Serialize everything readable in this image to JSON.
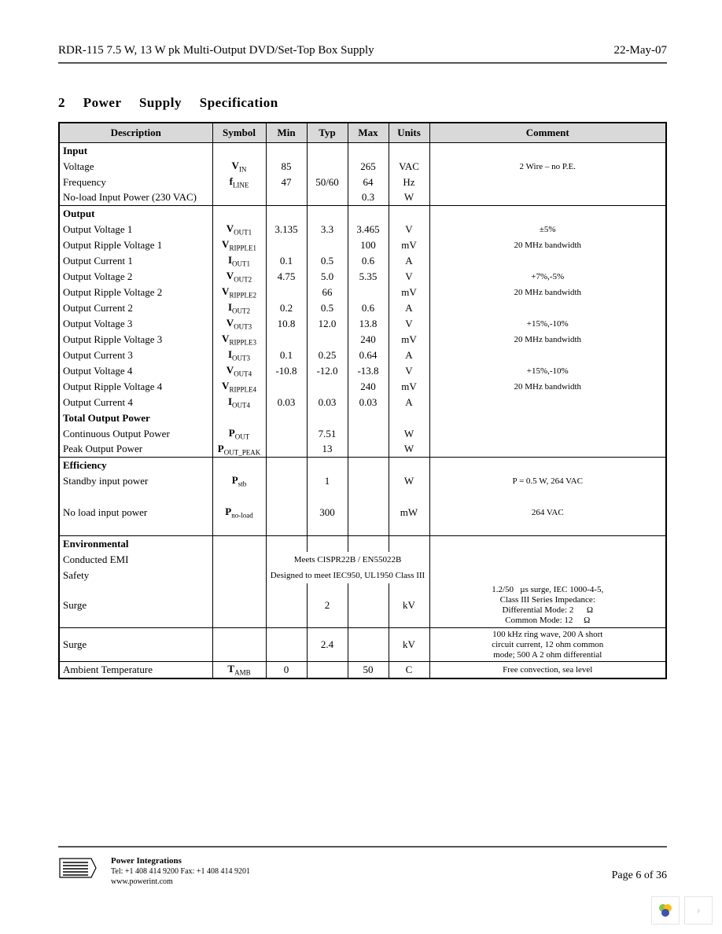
{
  "header": {
    "left": "RDR-115 7.5 W, 13 W pk Multi-Output DVD/Set-Top Box Supply",
    "right": "22-May-07"
  },
  "section_title": "2 Power Supply Specification",
  "table": {
    "headers": [
      "Description",
      "Symbol",
      "Min",
      "Typ",
      "Max",
      "Units",
      "Comment"
    ],
    "rows": [
      {
        "section": true,
        "desc_bold": "Input"
      },
      {
        "desc": "Voltage",
        "sym": "V",
        "sub": "IN",
        "min": "85",
        "typ": "",
        "max": "265",
        "unit": "VAC",
        "cmt": "2 Wire – no P.E."
      },
      {
        "desc": "Frequency",
        "sym": "f",
        "sub": "LINE",
        "min": "47",
        "typ": "50/60",
        "max": "64",
        "unit": "Hz",
        "cmt": ""
      },
      {
        "desc": "No-load Input Power (230 VAC)",
        "sym": "",
        "sub": "",
        "min": "",
        "typ": "",
        "max": "0.3",
        "unit": "W",
        "cmt": ""
      },
      {
        "section": true,
        "desc_bold": "Output"
      },
      {
        "desc": "Output Voltage 1",
        "sym": "V",
        "sub": "OUT1",
        "min": "3.135",
        "typ": "3.3",
        "max": "3.465",
        "unit": "V",
        "cmt": "±5%"
      },
      {
        "desc": "Output Ripple Voltage 1",
        "sym": "V",
        "sub": "RIPPLE1",
        "min": "",
        "typ": "",
        "max": "100",
        "unit": "mV",
        "cmt": "20 MHz bandwidth"
      },
      {
        "desc": "Output Current 1",
        "sym": "I",
        "sub": "OUT1",
        "min": "0.1",
        "typ": "0.5",
        "max": "0.6",
        "unit": "A",
        "cmt": ""
      },
      {
        "desc": "Output Voltage 2",
        "sym": "V",
        "sub": "OUT2",
        "min": "4.75",
        "typ": "5.0",
        "max": "5.35",
        "unit": "V",
        "cmt": "+7%,-5%"
      },
      {
        "desc": "Output Ripple Voltage 2",
        "sym": "V",
        "sub": "RIPPLE2",
        "min": "",
        "typ": "66",
        "max": "",
        "unit": "mV",
        "cmt": "20 MHz bandwidth"
      },
      {
        "desc": "Output Current 2",
        "sym": "I",
        "sub": "OUT2",
        "min": "0.2",
        "typ": "0.5",
        "max": "0.6",
        "unit": "A",
        "cmt": ""
      },
      {
        "desc": "Output Voltage 3",
        "sym": "V",
        "sub": "OUT3",
        "min": "10.8",
        "typ": "12.0",
        "max": "13.8",
        "unit": "V",
        "cmt": "+15%,-10%"
      },
      {
        "desc": "Output Ripple Voltage 3",
        "sym": "V",
        "sub": "RIPPLE3",
        "min": "",
        "typ": "",
        "max": "240",
        "unit": "mV",
        "cmt": "20 MHz bandwidth"
      },
      {
        "desc": "Output Current 3",
        "sym": "I",
        "sub": "OUT3",
        "min": "0.1",
        "typ": "0.25",
        "max": "0.64",
        "unit": "A",
        "cmt": ""
      },
      {
        "desc": "Output Voltage 4",
        "sym": "V",
        "sub": "OUT4",
        "min": "-10.8",
        "typ": "-12.0",
        "max": "-13.8",
        "unit": "V",
        "cmt": "+15%,-10%"
      },
      {
        "desc": "Output Ripple Voltage 4",
        "sym": "V",
        "sub": "RIPPLE4",
        "min": "",
        "typ": "",
        "max": "240",
        "unit": "mV",
        "cmt": "20 MHz bandwidth"
      },
      {
        "desc": "Output Current 4",
        "sym": "I",
        "sub": "OUT4",
        "min": "0.03",
        "typ": "0.03",
        "max": "0.03",
        "unit": "A",
        "cmt": ""
      },
      {
        "desc_bold": "Total Output Power"
      },
      {
        "desc": "Continuous Output Power",
        "sym": "P",
        "sub": "OUT",
        "min": "",
        "typ": "7.51",
        "max": "",
        "unit": "W",
        "cmt": ""
      },
      {
        "desc": "Peak Output Power",
        "sym": "P",
        "sub": "OUT_PEAK",
        "min": "",
        "typ": "13",
        "max": "",
        "unit": "W",
        "cmt": ""
      },
      {
        "section": true,
        "desc_bold": "Efficiency"
      },
      {
        "desc": "Standby input power",
        "sym": "P",
        "sub": "stb",
        "min": "",
        "typ": "1",
        "max": "",
        "unit": "W",
        "cmt": "P     = 0.5 W, 264 VAC"
      },
      {
        "spacer": true
      },
      {
        "desc": "No load input power",
        "sym": "P",
        "sub": "no-load",
        "min": "",
        "typ": "300",
        "max": "",
        "unit": "mW",
        "cmt": "264   VAC"
      },
      {
        "spacer": true
      },
      {
        "section": true,
        "desc_bold": "Environmental"
      },
      {
        "env": true,
        "desc": "Conducted EMI",
        "merged": "Meets CISPR22B / EN55022B"
      },
      {
        "env": true,
        "desc": "Safety",
        "merged": "Designed to meet IEC950, UL1950 Class III"
      },
      {
        "env2": true,
        "desc": "Surge",
        "min": "",
        "typ": "2",
        "max": "",
        "unit": "kV",
        "cmt": "1.2/50    µs surge, IEC 1000-4-5, Class III Series Impedance: Differential Mode: 2        Ω Common Mode: 12       Ω"
      },
      {
        "section": true,
        "desc": "Surge",
        "sym": "",
        "min": "",
        "typ": "2.4",
        "max": "",
        "unit": "kV",
        "cmt": "100 kHz ring wave, 200 A short circuit current, 12 ohm common mode; 500 A 2 ohm differential"
      },
      {
        "section": true,
        "last": true,
        "desc": "Ambient Temperature",
        "sym": "T",
        "sub": "AMB",
        "min": "0",
        "typ": "",
        "max": "50",
        "unit": "C",
        "cmt": "Free convection, sea level"
      }
    ]
  },
  "footer": {
    "company": "Power Integrations",
    "tel": "Tel: +1 408 414 9200   Fax: +1 408 414 9201",
    "web": "www.powerint.com",
    "page": "Page 6 of 36"
  }
}
